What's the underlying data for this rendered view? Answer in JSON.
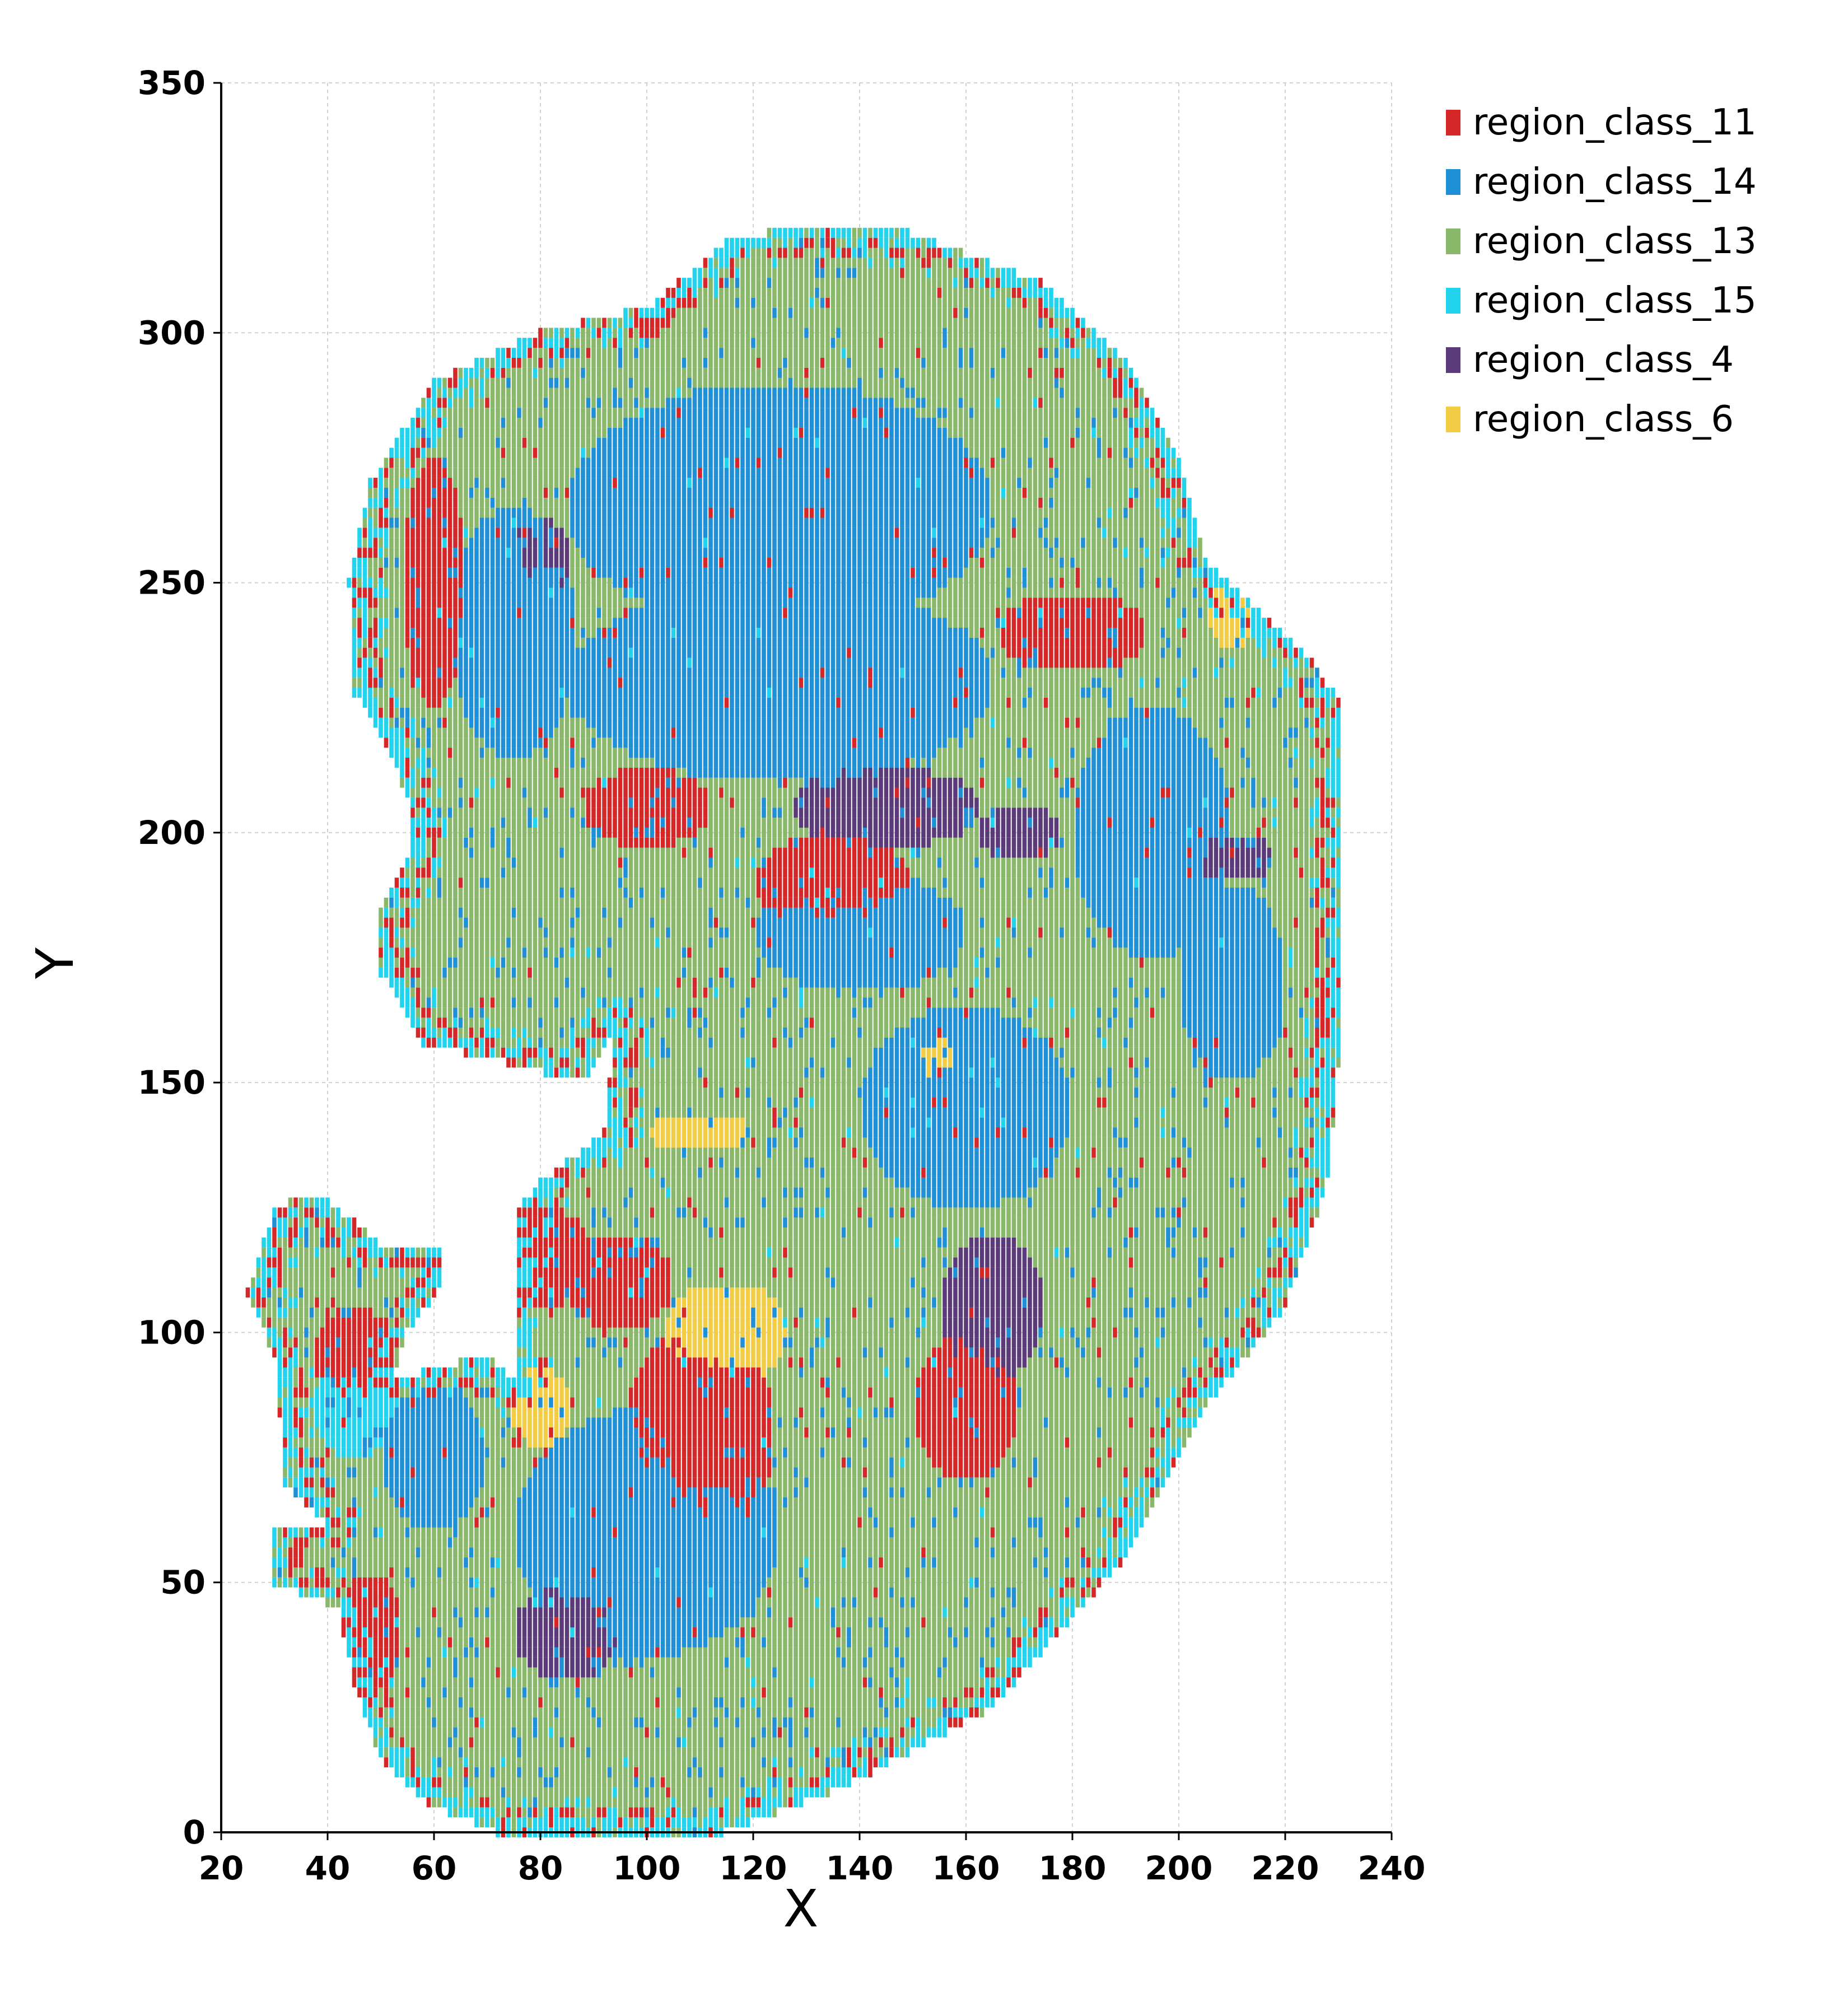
{
  "chart_data": {
    "type": "scatter",
    "title": "",
    "xlabel": "X",
    "ylabel": "Y",
    "xlim": [
      20,
      240
    ],
    "ylim": [
      0,
      350
    ],
    "xticks": [
      20,
      40,
      60,
      80,
      100,
      120,
      140,
      160,
      180,
      200,
      220,
      240
    ],
    "yticks": [
      0,
      50,
      100,
      150,
      200,
      250,
      300,
      350
    ],
    "grid": true,
    "legend_position": "top-right",
    "series": [
      {
        "name": "region_class_11",
        "color": "#d62728",
        "blobs": [
          [
            110,
            80,
            14,
            22
          ],
          [
            95,
            110,
            10,
            10
          ],
          [
            80,
            115,
            10,
            10
          ],
          [
            45,
            95,
            8,
            10
          ],
          [
            48,
            40,
            6,
            12
          ],
          [
            100,
            205,
            12,
            8
          ],
          [
            135,
            190,
            15,
            10
          ],
          [
            180,
            240,
            14,
            8
          ],
          [
            60,
            250,
            6,
            25
          ],
          [
            160,
            85,
            10,
            15
          ]
        ],
        "ring": 1.0
      },
      {
        "name": "region_class_14",
        "color": "#1f8fd6",
        "blobs": [
          [
            125,
            265,
            40,
            25
          ],
          [
            125,
            230,
            40,
            20
          ],
          [
            75,
            240,
            12,
            25
          ],
          [
            100,
            60,
            25,
            25
          ],
          [
            160,
            145,
            20,
            20
          ],
          [
            195,
            200,
            15,
            25
          ],
          [
            210,
            170,
            10,
            20
          ],
          [
            140,
            180,
            20,
            12
          ],
          [
            60,
            75,
            10,
            15
          ]
        ],
        "ring": 0
      },
      {
        "name": "region_class_13",
        "color": "#8ab86a",
        "blobs": [],
        "ring": 0,
        "base": true
      },
      {
        "name": "region_class_15",
        "color": "#22d3ee",
        "blobs": [
          [
            45,
            85,
            8,
            10
          ]
        ],
        "ring": 2.0
      },
      {
        "name": "region_class_4",
        "color": "#5b3a7a",
        "blobs": [
          [
            145,
            205,
            18,
            8
          ],
          [
            170,
            200,
            8,
            6
          ],
          [
            85,
            40,
            10,
            10
          ],
          [
            80,
            255,
            6,
            8
          ],
          [
            165,
            105,
            10,
            15
          ],
          [
            210,
            195,
            8,
            5
          ]
        ],
        "ring": 0
      },
      {
        "name": "region_class_6",
        "color": "#f2cc45",
        "blobs": [
          [
            115,
            100,
            12,
            10
          ],
          [
            110,
            140,
            10,
            4
          ],
          [
            80,
            85,
            6,
            8
          ],
          [
            155,
            155,
            5,
            5
          ],
          [
            210,
            245,
            5,
            8
          ]
        ],
        "ring": 0
      }
    ],
    "outline": [
      [
        72,
        0
      ],
      [
        115,
        0
      ],
      [
        135,
        8
      ],
      [
        165,
        25
      ],
      [
        190,
        55
      ],
      [
        205,
        85
      ],
      [
        220,
        105
      ],
      [
        228,
        130
      ],
      [
        231,
        165
      ],
      [
        231,
        200
      ],
      [
        231,
        225
      ],
      [
        225,
        235
      ],
      [
        215,
        245
      ],
      [
        205,
        255
      ],
      [
        200,
        275
      ],
      [
        190,
        295
      ],
      [
        175,
        310
      ],
      [
        150,
        320
      ],
      [
        130,
        322
      ],
      [
        115,
        318
      ],
      [
        100,
        305
      ],
      [
        80,
        300
      ],
      [
        60,
        290
      ],
      [
        48,
        270
      ],
      [
        44,
        250
      ],
      [
        45,
        228
      ],
      [
        52,
        215
      ],
      [
        56,
        205
      ],
      [
        55,
        195
      ],
      [
        50,
        185
      ],
      [
        50,
        172
      ],
      [
        58,
        158
      ],
      [
        70,
        155
      ],
      [
        88,
        150
      ],
      [
        94,
        160
      ],
      [
        92,
        140
      ],
      [
        80,
        130
      ],
      [
        76,
        125
      ],
      [
        76,
        110
      ],
      [
        76,
        90
      ],
      [
        70,
        95
      ],
      [
        60,
        93
      ],
      [
        52,
        90
      ],
      [
        55,
        100
      ],
      [
        62,
        110
      ],
      [
        62,
        118
      ],
      [
        50,
        118
      ],
      [
        38,
        128
      ],
      [
        30,
        125
      ],
      [
        25,
        108
      ],
      [
        30,
        95
      ],
      [
        32,
        70
      ],
      [
        40,
        62
      ],
      [
        30,
        62
      ],
      [
        30,
        50
      ],
      [
        42,
        45
      ],
      [
        45,
        30
      ],
      [
        50,
        15
      ],
      [
        60,
        5
      ]
    ]
  },
  "legend": {
    "items": [
      "region_class_11",
      "region_class_14",
      "region_class_13",
      "region_class_15",
      "region_class_4",
      "region_class_6"
    ]
  }
}
